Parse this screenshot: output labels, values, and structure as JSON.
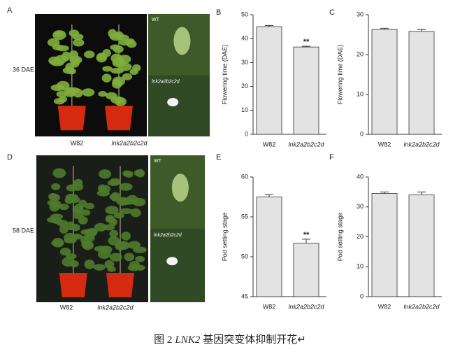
{
  "figure": {
    "photos": [
      {
        "panel": "A",
        "stage": "36 DAE",
        "labels": [
          "W82",
          "lnk2a2b2c2d"
        ],
        "insets": [
          "WT",
          "lnk2a2b2c2d"
        ]
      },
      {
        "panel": "D",
        "stage": "58 DAE",
        "labels": [
          "W82",
          "lnk2a2b2c2d"
        ],
        "insets": [
          "WT",
          "lnk2a2b2c2d"
        ]
      }
    ],
    "caption": {
      "prefix": "图 2",
      "gene": "LNK2",
      "text": "基因突变体抑制开花↵"
    }
  },
  "chart_data": [
    {
      "type": "bar",
      "panel": "B",
      "ylabel": "Flowering time (DAE)",
      "categories": [
        "W82",
        "lnk2a2b2c2d"
      ],
      "values": [
        45,
        36.5
      ],
      "errors": [
        0.5,
        0.3
      ],
      "significance": [
        null,
        "**"
      ],
      "color": "#e3e3e3",
      "ylim": [
        0,
        50
      ],
      "yticks": [
        0,
        10,
        20,
        30,
        40,
        50
      ]
    },
    {
      "type": "bar",
      "panel": "C",
      "ylabel": "Flowering time (DAE)",
      "categories": [
        "W82",
        "lnk2a2b2c2d"
      ],
      "values": [
        26.3,
        25.8
      ],
      "errors": [
        0.3,
        0.5
      ],
      "significance": [
        null,
        null
      ],
      "color": "#e3e3e3",
      "ylim": [
        0,
        30
      ],
      "yticks": [
        0,
        10,
        20,
        30
      ]
    },
    {
      "type": "bar",
      "panel": "E",
      "ylabel": "Pod setting stage",
      "categories": [
        "W82",
        "lnk2a2b2c2d"
      ],
      "values": [
        57.5,
        51.7
      ],
      "errors": [
        0.3,
        0.5
      ],
      "significance": [
        null,
        "**"
      ],
      "color": "#e3e3e3",
      "ylim": [
        45,
        60
      ],
      "yticks": [
        45,
        50,
        55,
        60
      ]
    },
    {
      "type": "bar",
      "panel": "F",
      "ylabel": "Pod setting stage",
      "categories": [
        "W82",
        "lnk2a2b2c2d"
      ],
      "values": [
        34.5,
        34
      ],
      "errors": [
        0.5,
        1
      ],
      "significance": [
        null,
        null
      ],
      "color": "#e3e3e3",
      "ylim": [
        0,
        40
      ],
      "yticks": [
        0,
        10,
        20,
        30,
        40
      ]
    }
  ]
}
